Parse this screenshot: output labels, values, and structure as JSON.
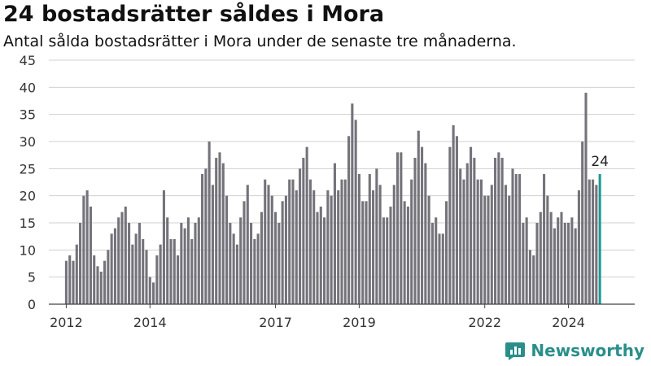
{
  "title": "24 bostadsrätter såldes i Mora",
  "subtitle": "Antal sålda bostadsrätter i Mora under de senaste tre månaderna.",
  "brand": {
    "name": "Newsworthy",
    "icon": "bar-chart-logo-icon"
  },
  "colors": {
    "bar": "#74737a",
    "highlight": "#1d9a94",
    "grid": "#d0d0d0",
    "axis": "#444444",
    "brand": "#2a8f8a"
  },
  "chart_data": {
    "type": "bar",
    "title": "24 bostadsrätter såldes i Mora",
    "xlabel": "",
    "ylabel": "",
    "ylim": [
      0,
      45
    ],
    "yticks": [
      0,
      5,
      10,
      15,
      20,
      25,
      30,
      35,
      40,
      45
    ],
    "xlim": [
      "2011-08",
      "2025-08"
    ],
    "xticks": [
      {
        "label": "2012",
        "x": "2012-01"
      },
      {
        "label": "2014",
        "x": "2014-01"
      },
      {
        "label": "2017",
        "x": "2017-01"
      },
      {
        "label": "2019",
        "x": "2019-01"
      },
      {
        "label": "2022",
        "x": "2022-01"
      },
      {
        "label": "2024",
        "x": "2024-01"
      }
    ],
    "grid": true,
    "start_month": "2012-01",
    "values": [
      8,
      9,
      8,
      11,
      15,
      20,
      21,
      18,
      9,
      7,
      6,
      8,
      10,
      13,
      14,
      16,
      17,
      18,
      15,
      11,
      13,
      15,
      12,
      10,
      5,
      4,
      9,
      11,
      21,
      16,
      12,
      12,
      9,
      15,
      14,
      16,
      12,
      15,
      16,
      24,
      25,
      30,
      22,
      27,
      28,
      26,
      20,
      15,
      13,
      11,
      16,
      19,
      22,
      15,
      12,
      13,
      17,
      23,
      22,
      20,
      17,
      15,
      19,
      20,
      23,
      23,
      21,
      25,
      27,
      29,
      23,
      21,
      17,
      18,
      16,
      21,
      20,
      26,
      21,
      23,
      23,
      31,
      37,
      34,
      24,
      19,
      19,
      24,
      21,
      25,
      22,
      16,
      16,
      18,
      22,
      28,
      28,
      19,
      18,
      23,
      27,
      32,
      29,
      26,
      20,
      15,
      16,
      13,
      13,
      19,
      29,
      33,
      31,
      25,
      23,
      26,
      29,
      27,
      23,
      23,
      20,
      20,
      22,
      27,
      28,
      27,
      22,
      20,
      25,
      24,
      24,
      15,
      16,
      10,
      9,
      15,
      17,
      24,
      20,
      17,
      14,
      16,
      17,
      15,
      15,
      16,
      14,
      21,
      30,
      39,
      23,
      23,
      22,
      24
    ],
    "highlight_last": true,
    "annotations": [
      {
        "text": "24",
        "target": "last"
      }
    ]
  }
}
